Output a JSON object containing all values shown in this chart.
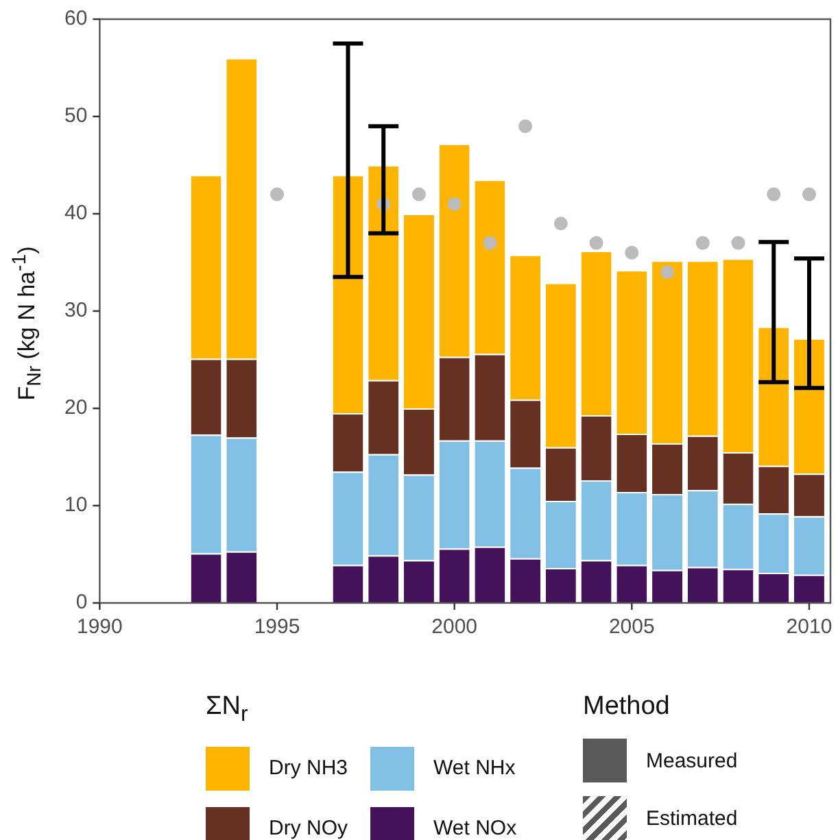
{
  "chart_data": {
    "type": "bar",
    "stacked": true,
    "ylabel": "F$_{Nr}$ (kg N ha$^{-1}$)",
    "legend_title": "ΣN$_{r}$",
    "legend": "bottom",
    "grid": false,
    "x": [
      1993,
      1994,
      1997,
      1998,
      1999,
      2000,
      2001,
      2002,
      2003,
      2004,
      2005,
      2006,
      2007,
      2008,
      2009,
      2010
    ],
    "xlim": [
      1990,
      2010.6
    ],
    "xticks": [
      1990,
      1995,
      2000,
      2005,
      2010
    ],
    "ylim": [
      0,
      60
    ],
    "yticks": [
      0,
      10,
      20,
      30,
      40,
      50,
      60
    ],
    "series": [
      {
        "name": "Wet NOx",
        "color": "#44125a",
        "values": [
          5.1,
          5.3,
          3.9,
          4.9,
          4.4,
          5.6,
          5.8,
          4.6,
          3.6,
          4.4,
          3.9,
          3.4,
          3.7,
          3.5,
          3.1,
          2.9
        ]
      },
      {
        "name": "Wet NHx",
        "color": "#82bfe5",
        "values": [
          12.2,
          11.7,
          9.6,
          10.4,
          8.8,
          11.1,
          10.9,
          9.3,
          6.9,
          8.2,
          7.5,
          7.8,
          7.9,
          6.7,
          6.1,
          6.0
        ]
      },
      {
        "name": "Dry NOy",
        "color": "#663022",
        "values": [
          7.8,
          8.1,
          6.0,
          7.6,
          6.8,
          8.6,
          8.9,
          7.0,
          5.5,
          6.7,
          6.0,
          5.2,
          5.6,
          5.3,
          4.9,
          4.4
        ]
      },
      {
        "name": "Dry NH3",
        "color": "#ffb400",
        "values": [
          18.9,
          30.9,
          24.5,
          22.1,
          20.0,
          21.9,
          17.9,
          14.9,
          16.9,
          16.9,
          16.8,
          18.8,
          18.0,
          19.9,
          14.3,
          13.9
        ],
        "errors": [
          null,
          null,
          [
            33.5,
            57.5
          ],
          [
            38,
            49
          ],
          null,
          null,
          null,
          null,
          null,
          null,
          null,
          null,
          null,
          null,
          [
            22.7,
            37.1
          ],
          [
            22.1,
            35.4
          ]
        ]
      },
      {
        "type": "scatter",
        "color": "#bbbbbb",
        "marker": "circle",
        "x": [
          1995,
          1998,
          1999,
          2000,
          2001,
          2002,
          2003,
          2004,
          2005,
          2006,
          2007,
          2008,
          2009,
          2010
        ],
        "values": [
          42,
          41,
          42,
          41,
          37,
          49,
          39,
          37,
          36,
          34,
          37,
          37,
          42,
          42
        ]
      }
    ],
    "annotations": [
      "Method",
      "Measured",
      "Estimated"
    ]
  }
}
